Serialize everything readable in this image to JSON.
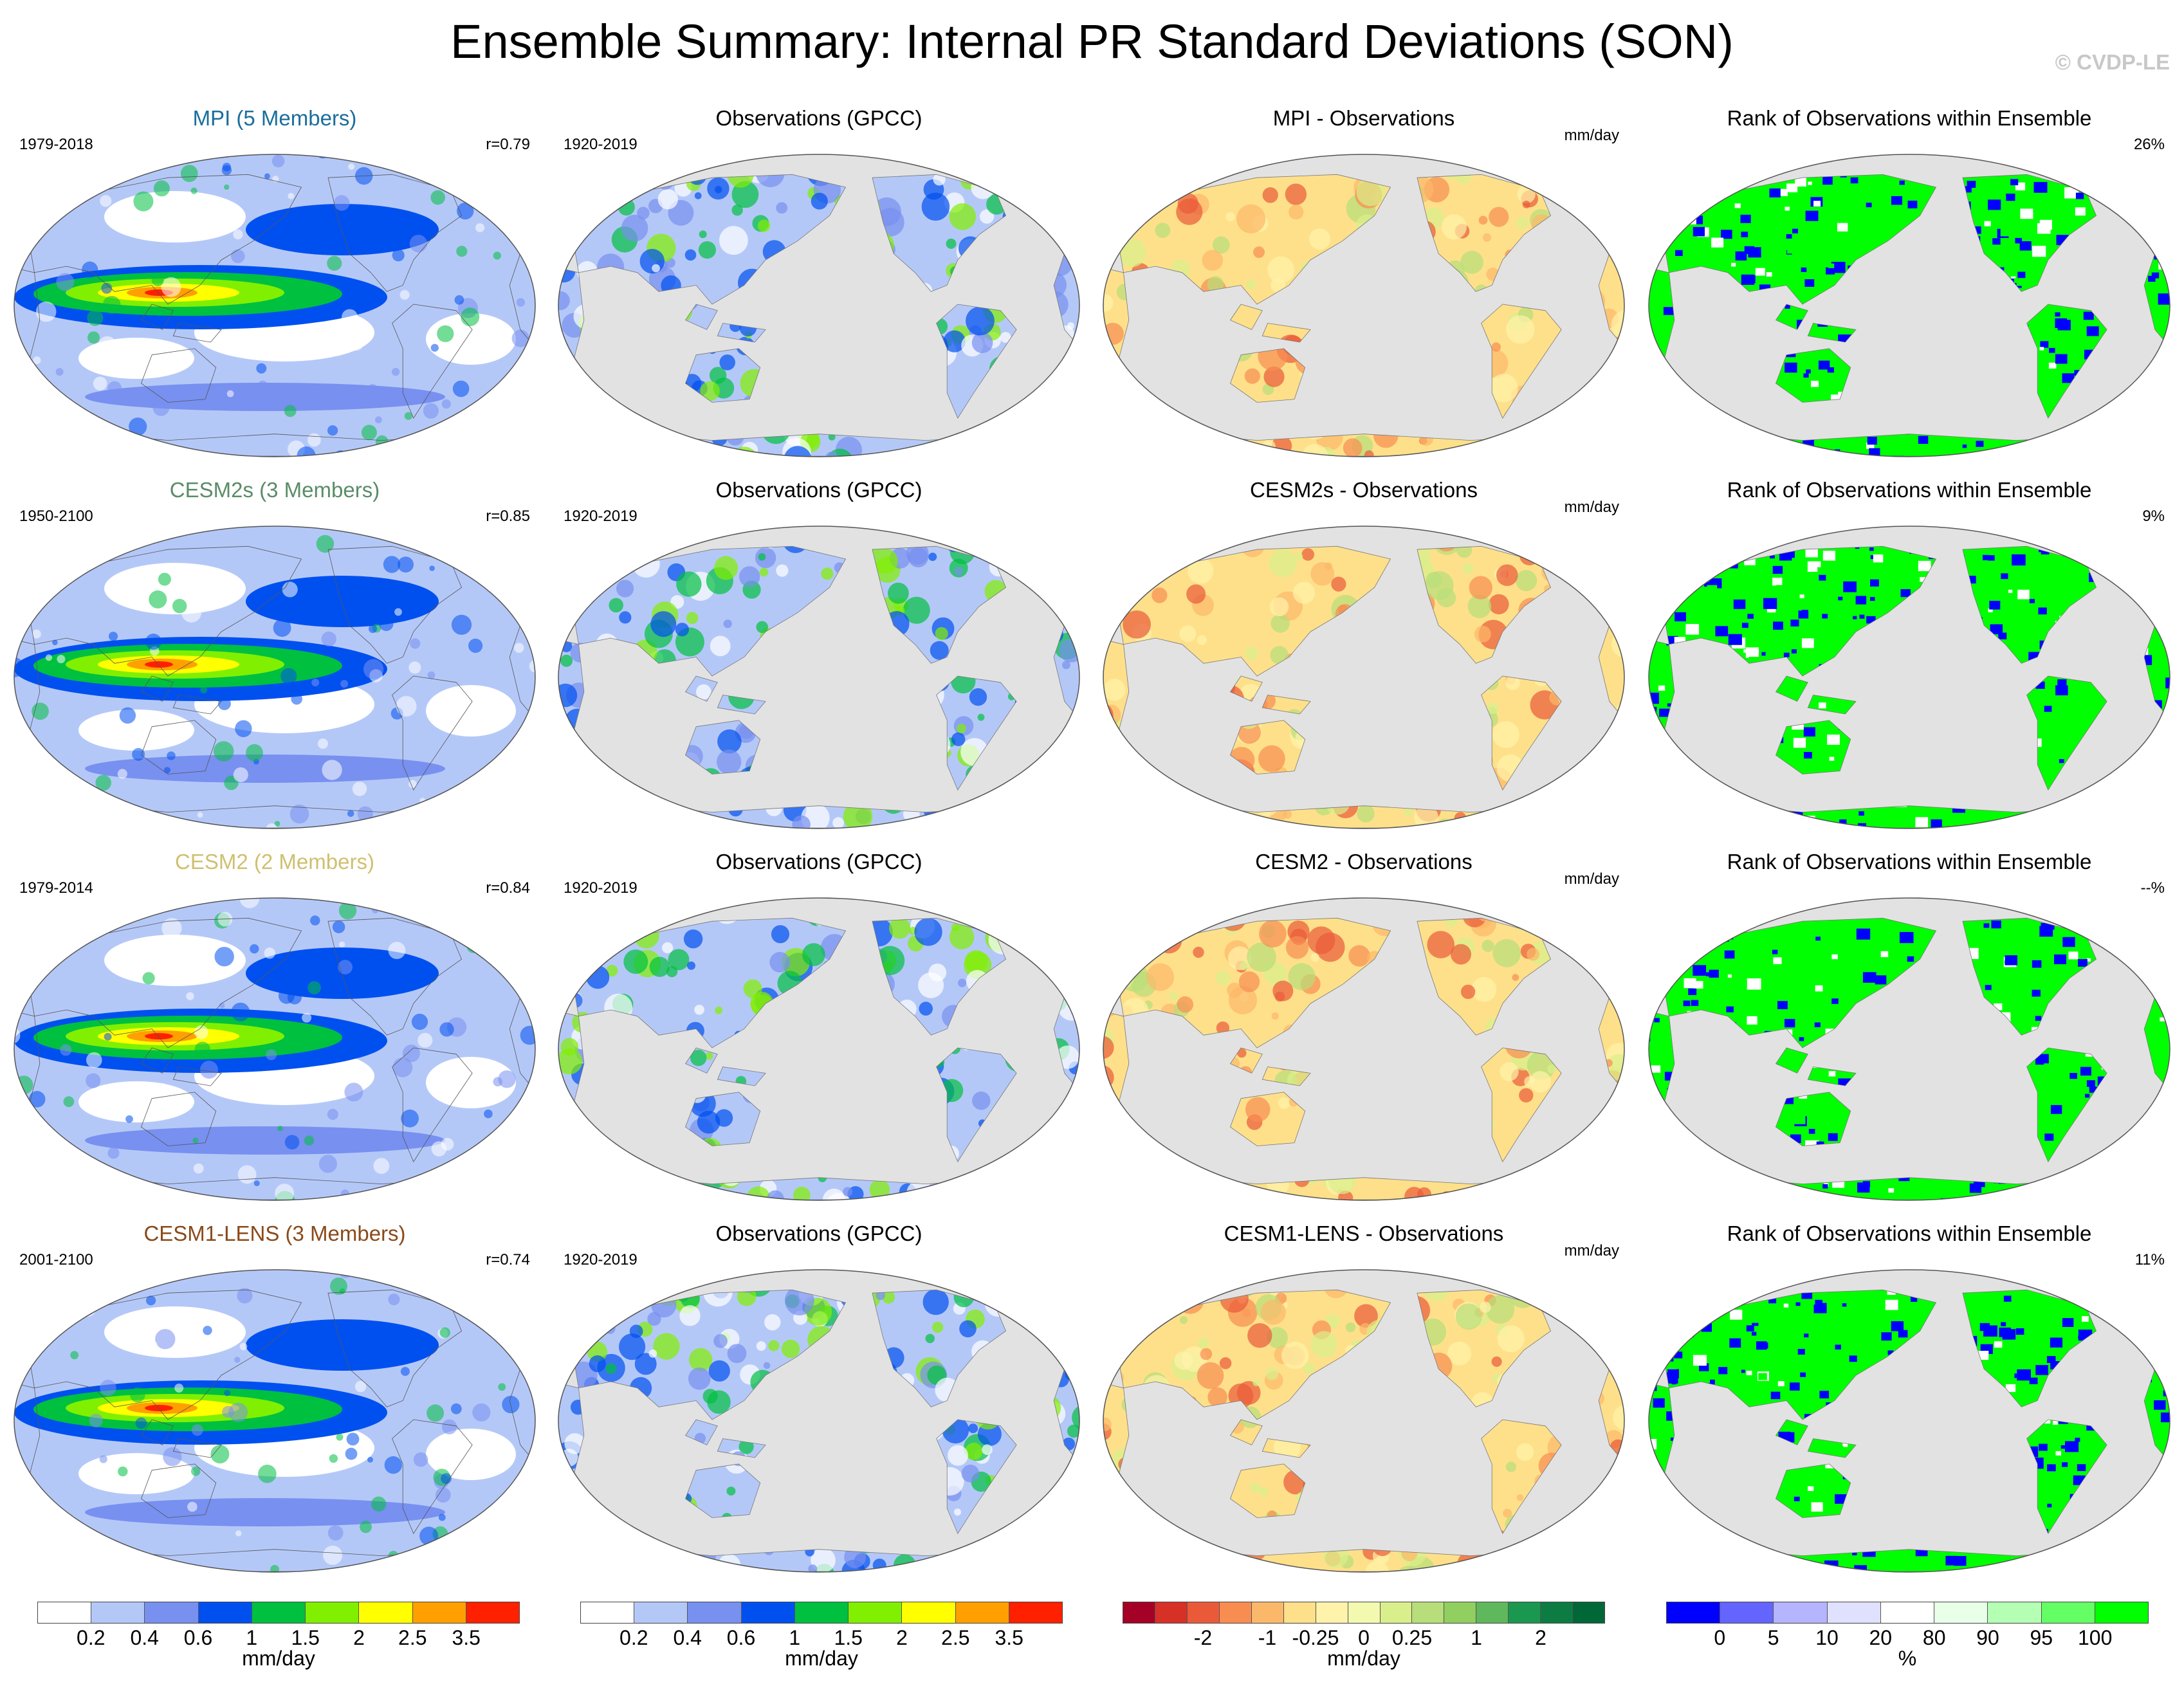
{
  "figure": {
    "title": "Ensemble Summary: Internal PR Standard Deviations (SON)",
    "copyright": "© CVDP-LE"
  },
  "rows": [
    {
      "model_title": "MPI (5 Members)",
      "model_color": "#1a6e9c",
      "model_years": "1979-2018",
      "corr": "r=0.79",
      "obs_title": "Observations (GPCC)",
      "obs_years": "1920-2019",
      "diff_title": "MPI - Observations",
      "diff_unit": "mm/day",
      "rank_title": "Rank of Observations within Ensemble",
      "rank_pct": "26%"
    },
    {
      "model_title": "CESM2s (3 Members)",
      "model_color": "#5a8c68",
      "model_years": "1950-2100",
      "corr": "r=0.85",
      "obs_title": "Observations (GPCC)",
      "obs_years": "1920-2019",
      "diff_title": "CESM2s - Observations",
      "diff_unit": "mm/day",
      "rank_title": "Rank of Observations within Ensemble",
      "rank_pct": "9%"
    },
    {
      "model_title": "CESM2 (2 Members)",
      "model_color": "#cfc070",
      "model_years": "1979-2014",
      "corr": "r=0.84",
      "obs_title": "Observations (GPCC)",
      "obs_years": "1920-2019",
      "diff_title": "CESM2 - Observations",
      "diff_unit": "mm/day",
      "rank_title": "Rank of Observations within Ensemble",
      "rank_pct": "--%"
    },
    {
      "model_title": "CESM1-LENS (3 Members)",
      "model_color": "#8a4a1a",
      "model_years": "2001-2100",
      "corr": "r=0.74",
      "obs_title": "Observations (GPCC)",
      "obs_years": "1920-2019",
      "diff_title": "CESM1-LENS - Observations",
      "diff_unit": "mm/day",
      "rank_title": "Rank of Observations within Ensemble",
      "rank_pct": "11%"
    }
  ],
  "colorbars": {
    "model": {
      "colors": [
        "#ffffff",
        "#b4c8f8",
        "#7890f0",
        "#0050f0",
        "#00c040",
        "#80f000",
        "#ffff00",
        "#ffa000",
        "#ff2000"
      ],
      "ticks": [
        "0.2",
        "0.4",
        "0.6",
        "1",
        "1.5",
        "2",
        "2.5",
        "3.5"
      ],
      "unit": "mm/day"
    },
    "obs": {
      "colors": [
        "#ffffff",
        "#b4c8f8",
        "#7890f0",
        "#0050f0",
        "#00c040",
        "#80f000",
        "#ffff00",
        "#ffa000",
        "#ff2000"
      ],
      "ticks": [
        "0.2",
        "0.4",
        "0.6",
        "1",
        "1.5",
        "2",
        "2.5",
        "3.5"
      ],
      "unit": "mm/day"
    },
    "diff": {
      "colors": [
        "#a50026",
        "#d73027",
        "#ea5a39",
        "#f88d52",
        "#fcb86a",
        "#fee08b",
        "#fff2aa",
        "#f4f9b0",
        "#d9ef8b",
        "#b7de7a",
        "#91cf60",
        "#5fb85c",
        "#1a9850",
        "#0c7c43",
        "#006837"
      ],
      "ticks": [
        "-2",
        "-1",
        "-0.25",
        "0",
        "0.25",
        "1",
        "2"
      ],
      "unit": "mm/day"
    },
    "rank": {
      "colors": [
        "#0000ff",
        "#6464ff",
        "#b4b4ff",
        "#e0e0ff",
        "#ffffff",
        "#e8ffe8",
        "#b4ffb4",
        "#64ff64",
        "#00ff00"
      ],
      "ticks": [
        "0",
        "5",
        "10",
        "20",
        "80",
        "90",
        "95",
        "100"
      ],
      "unit": "%"
    }
  }
}
